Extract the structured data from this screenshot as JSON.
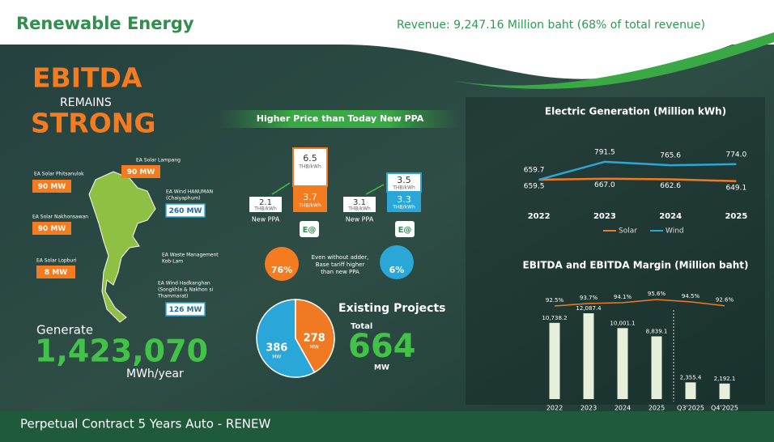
{
  "header": {
    "title": "Renewable Energy",
    "revenue": "Revenue: 9,247.16 Million baht (68% of total revenue)"
  },
  "ebitda": {
    "line1": "EBITDA",
    "line2": "REMAINS",
    "line3": "STRONG"
  },
  "map": {
    "sites": [
      {
        "name": [
          "EA Solar Lampang"
        ],
        "capacity": "90 MW"
      },
      {
        "name": [
          "EA Solar Phitsanulok"
        ],
        "capacity": "90 MW"
      },
      {
        "name": [
          "EA Wind HANUMAN",
          "(Chaiyaphum)"
        ],
        "capacity": "260 MW"
      },
      {
        "name": [
          "EA Solar Nakhonsawan"
        ],
        "capacity": "90 MW"
      },
      {
        "name": [
          "EA Waste Management",
          "Kob-Lam"
        ]
      },
      {
        "name": [
          "EA Solar Lopburi"
        ],
        "capacity": "8 MW"
      },
      {
        "name": [
          "EA Wind Hadkanghan",
          "(Songkhla & Nakhon si",
          "Thammarat)"
        ],
        "capacity": "126 MW"
      }
    ]
  },
  "generate": {
    "label": "Generate",
    "amount": "1,423,070",
    "unit": "MWh/year"
  },
  "price": {
    "banner": "Higher Price than Today New PPA",
    "unit": "THB/kWh",
    "new_ppa": "New PPA",
    "logo": "E@",
    "solar": {
      "old": "6.5",
      "current": "3.7",
      "new": "2.1",
      "share": "76%"
    },
    "wind": {
      "old": "3.5",
      "current": "3.3",
      "new": "3.1",
      "share": "6%"
    },
    "note": [
      "Even without adder,",
      "Base tariff higher",
      "than new PPA"
    ]
  },
  "chart_data": [
    {
      "type": "line",
      "title": "Electric Generation (Million kWh)",
      "categories": [
        "2022",
        "2023",
        "2024",
        "2025"
      ],
      "ylim": [
        600,
        850
      ],
      "series": [
        {
          "name": "Solar",
          "color": "#f07a22",
          "values": [
            659.5,
            667.0,
            662.6,
            649.1
          ],
          "value_labels": [
            "659.5",
            "667.0",
            "662.6",
            "649.1"
          ]
        },
        {
          "name": "Wind",
          "color": "#2aa7d8",
          "values": [
            659.7,
            791.5,
            765.6,
            774.0
          ],
          "value_labels": [
            "659.7",
            "791.5",
            "765.6",
            "774.0"
          ]
        }
      ]
    },
    {
      "type": "bar",
      "title": "EBITDA and EBITDA Margin (Million baht)",
      "categories": [
        "2022",
        "2023",
        "2024",
        "2025",
        "Q3'2025",
        "Q4'2025"
      ],
      "ylim": [
        0,
        13000
      ],
      "y2lim": [
        85,
        100
      ],
      "series": [
        {
          "color": "#e6efd9",
          "values": [
            10738.2,
            12087.4,
            10001.1,
            8839.1,
            2355.4,
            2192.1
          ],
          "value_labels": [
            "10,738.2",
            "12,087.4",
            "10,001.1",
            "8,839.1",
            "2,355.4",
            "2,192.1"
          ]
        },
        {
          "color": "#f07a22",
          "axis": "y2",
          "values": [
            92.5,
            93.7,
            94.1,
            95.6,
            94.5,
            92.6
          ],
          "value_labels": [
            "92.5%",
            "93.7%",
            "94.1%",
            "95.6%",
            "94.5%",
            "92.6%"
          ]
        }
      ]
    },
    {
      "type": "pie",
      "title": "Existing Projects",
      "values": [
        386,
        278
      ],
      "colors": [
        "#2aa7d8",
        "#f07a22"
      ],
      "unit": "MW",
      "total_label": "Total",
      "total": "664"
    }
  ],
  "footer": "Perpetual Contract 5 Years Auto - RENEW"
}
